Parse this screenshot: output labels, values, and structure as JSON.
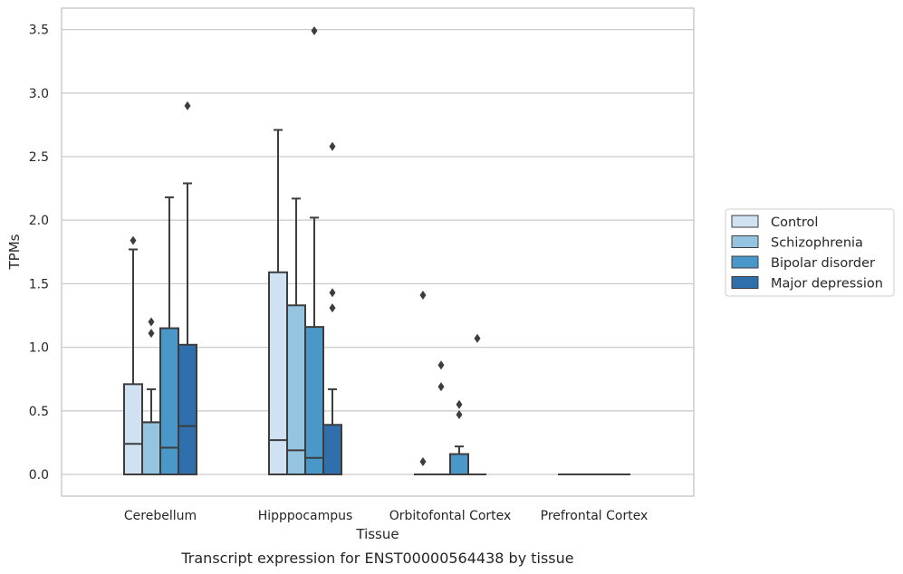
{
  "caption": "Transcript expression for ENST00000564438 by tissue",
  "chart_data": {
    "type": "box",
    "xlabel": "Tissue",
    "ylabel": "TPMs",
    "ylim": [
      -0.17,
      3.67
    ],
    "yticks": [
      "0.0",
      "0.5",
      "1.0",
      "1.5",
      "2.0",
      "2.5",
      "3.0",
      "3.5"
    ],
    "categories": [
      "Cerebellum",
      "Hipppocampus",
      "Orbitofontal Cortex",
      "Prefrontal Cortex"
    ],
    "grid": "horizontal",
    "legend_placement": "right",
    "series": [
      {
        "name": "Control",
        "color": "#d0e1f2",
        "boxes": [
          {
            "q1": 0,
            "median": 0.24,
            "q3": 0.71,
            "whisker_low": 0,
            "whisker_high": 1.77,
            "outliers": [
              1.84
            ]
          },
          {
            "q1": 0,
            "median": 0.27,
            "q3": 1.59,
            "whisker_low": 0,
            "whisker_high": 2.71,
            "outliers": []
          },
          {
            "q1": 0,
            "median": 0,
            "q3": 0,
            "whisker_low": 0,
            "whisker_high": 0,
            "outliers": [
              0.1,
              1.41
            ]
          },
          {
            "q1": 0,
            "median": 0,
            "q3": 0,
            "whisker_low": 0,
            "whisker_high": 0,
            "outliers": []
          }
        ]
      },
      {
        "name": "Schizophrenia",
        "color": "#94c4df",
        "boxes": [
          {
            "q1": 0,
            "median": 0.41,
            "q3": 0.41,
            "whisker_low": 0,
            "whisker_high": 0.67,
            "outliers": [
              1.11,
              1.2
            ]
          },
          {
            "q1": 0,
            "median": 0.19,
            "q3": 1.33,
            "whisker_low": 0,
            "whisker_high": 2.17,
            "outliers": []
          },
          {
            "q1": 0,
            "median": 0,
            "q3": 0,
            "whisker_low": 0,
            "whisker_high": 0,
            "outliers": [
              0.69,
              0.86
            ]
          },
          {
            "q1": 0,
            "median": 0,
            "q3": 0,
            "whisker_low": 0,
            "whisker_high": 0,
            "outliers": []
          }
        ]
      },
      {
        "name": "Bipolar disorder",
        "color": "#4a98c9",
        "boxes": [
          {
            "q1": 0,
            "median": 0.21,
            "q3": 1.15,
            "whisker_low": 0,
            "whisker_high": 2.18,
            "outliers": []
          },
          {
            "q1": 0,
            "median": 0.13,
            "q3": 1.16,
            "whisker_low": 0,
            "whisker_high": 2.02,
            "outliers": [
              3.49
            ]
          },
          {
            "q1": 0,
            "median": 0,
            "q3": 0.16,
            "whisker_low": 0,
            "whisker_high": 0.22,
            "outliers": [
              0.47,
              0.55
            ]
          },
          {
            "q1": 0,
            "median": 0,
            "q3": 0,
            "whisker_low": 0,
            "whisker_high": 0,
            "outliers": []
          }
        ]
      },
      {
        "name": "Major depression",
        "color": "#2e6fac",
        "boxes": [
          {
            "q1": 0,
            "median": 0.38,
            "q3": 1.02,
            "whisker_low": 0,
            "whisker_high": 2.29,
            "outliers": [
              2.9
            ]
          },
          {
            "q1": 0,
            "median": 0,
            "q3": 0.39,
            "whisker_low": 0,
            "whisker_high": 0.67,
            "outliers": [
              1.31,
              1.43,
              2.58
            ]
          },
          {
            "q1": 0,
            "median": 0,
            "q3": 0,
            "whisker_low": 0,
            "whisker_high": 0,
            "outliers": [
              1.07
            ]
          },
          {
            "q1": 0,
            "median": 0,
            "q3": 0,
            "whisker_low": 0,
            "whisker_high": 0,
            "outliers": []
          }
        ]
      }
    ]
  }
}
